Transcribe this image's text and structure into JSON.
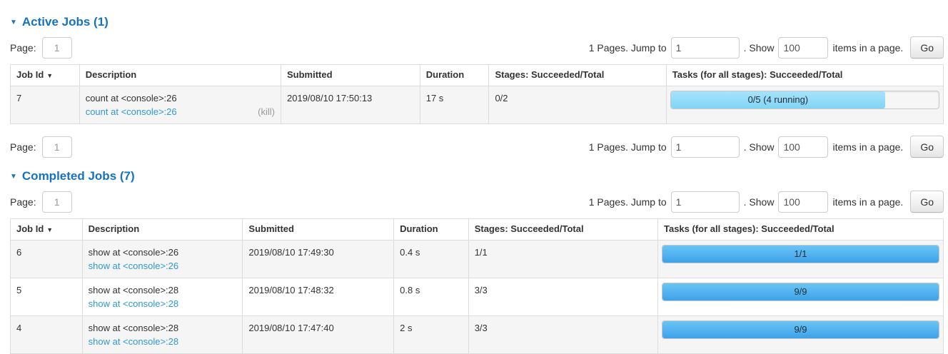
{
  "colors": {
    "accent_blue": "#1673bf",
    "link_blue": "#2f9ad2",
    "bar_running": "#8cd9f7",
    "bar_succeeded_top": "#6ac4f5",
    "bar_succeeded_bottom": "#3ea2ea"
  },
  "collapse_arrow": "▼",
  "sort_arrow": "▼",
  "headers": {
    "job_id": "Job Id",
    "description": "Description",
    "submitted": "Submitted",
    "duration": "Duration",
    "stages": "Stages: Succeeded/Total",
    "tasks": "Tasks (for all stages): Succeeded/Total"
  },
  "pagination": {
    "page_label": "Page:",
    "page_value": "1",
    "pages_text": "1 Pages. Jump to",
    "jump_value": "1",
    "show_text": ". Show",
    "show_value": "100",
    "items_text": "items in a page.",
    "go_label": "Go"
  },
  "active": {
    "title": "Active Jobs (1)",
    "rows": [
      {
        "job_id": "7",
        "description": "count at <console>:26",
        "description_link": "count at <console>:26",
        "kill_label": "(kill)",
        "submitted": "2019/08/10 17:50:13",
        "duration": "17 s",
        "stages": "0/2",
        "tasks_label": "0/5 (4 running)",
        "tasks_percent": "80",
        "tasks_status": "running"
      }
    ]
  },
  "completed": {
    "title": "Completed Jobs (7)",
    "rows": [
      {
        "job_id": "6",
        "description": "show at <console>:26",
        "description_link": "show at <console>:26",
        "submitted": "2019/08/10 17:49:30",
        "duration": "0.4 s",
        "stages": "1/1",
        "tasks_label": "1/1",
        "tasks_percent": "100",
        "tasks_status": "succeeded"
      },
      {
        "job_id": "5",
        "description": "show at <console>:28",
        "description_link": "show at <console>:28",
        "submitted": "2019/08/10 17:48:32",
        "duration": "0.8 s",
        "stages": "3/3",
        "tasks_label": "9/9",
        "tasks_percent": "100",
        "tasks_status": "succeeded"
      },
      {
        "job_id": "4",
        "description": "show at <console>:28",
        "description_link": "show at <console>:28",
        "submitted": "2019/08/10 17:47:40",
        "duration": "2 s",
        "stages": "3/3",
        "tasks_label": "9/9",
        "tasks_percent": "100",
        "tasks_status": "succeeded"
      }
    ]
  }
}
